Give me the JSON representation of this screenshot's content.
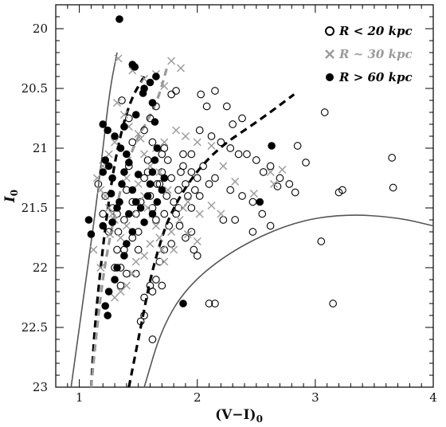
{
  "chart_data": {
    "type": "scatter",
    "xlabel": "(V−I)₀",
    "ylabel": "I₀",
    "xlim": [
      0.8,
      4.0
    ],
    "ylim": [
      23.0,
      19.8
    ],
    "y_inverted": true,
    "x_ticks": [
      1,
      2,
      3,
      4
    ],
    "y_ticks": [
      20,
      20.5,
      21,
      21.5,
      22,
      22.5,
      23
    ],
    "x_minor_step": 0.1,
    "y_minor_step": 0.1,
    "legend_position": "top-right",
    "legend": [
      {
        "symbol": "open-circle",
        "label": "R < 20 kpc",
        "color": "#000000"
      },
      {
        "symbol": "cross",
        "label": "R ~ 30 kpc",
        "color": "#9a9a9a"
      },
      {
        "symbol": "filled-circle",
        "label": "R > 60 kpc",
        "color": "#000000"
      }
    ],
    "series": [
      {
        "name": "R < 20 kpc",
        "marker": "open-circle",
        "color": "#000000",
        "points": [
          [
            1.16,
            21.3
          ],
          [
            1.22,
            21.4
          ],
          [
            1.2,
            21.55
          ],
          [
            1.28,
            21.5
          ],
          [
            1.25,
            21.7
          ],
          [
            1.32,
            21.85
          ],
          [
            1.3,
            22.0
          ],
          [
            1.35,
            22.15
          ],
          [
            1.38,
            21.6
          ],
          [
            1.4,
            21.35
          ],
          [
            1.42,
            21.15
          ],
          [
            1.45,
            21.45
          ],
          [
            1.48,
            21.55
          ],
          [
            1.5,
            21.7
          ],
          [
            1.55,
            21.25
          ],
          [
            1.58,
            21.1
          ],
          [
            1.6,
            21.4
          ],
          [
            1.62,
            21.5
          ],
          [
            1.65,
            21.6
          ],
          [
            1.68,
            21.3
          ],
          [
            1.7,
            21.2
          ],
          [
            1.72,
            21.0
          ],
          [
            1.74,
            21.4
          ],
          [
            1.75,
            21.1
          ],
          [
            1.78,
            21.25
          ],
          [
            1.8,
            21.45
          ],
          [
            1.82,
            21.55
          ],
          [
            1.84,
            21.35
          ],
          [
            1.86,
            21.2
          ],
          [
            1.88,
            21.15
          ],
          [
            1.9,
            21.3
          ],
          [
            1.92,
            21.4
          ],
          [
            1.95,
            21.5
          ],
          [
            1.98,
            21.35
          ],
          [
            2.0,
            21.25
          ],
          [
            1.45,
            20.95
          ],
          [
            1.55,
            20.85
          ],
          [
            1.6,
            20.75
          ],
          [
            1.65,
            20.65
          ],
          [
            1.78,
            20.55
          ],
          [
            1.82,
            20.52
          ],
          [
            2.03,
            20.55
          ],
          [
            2.08,
            20.65
          ],
          [
            2.15,
            20.52
          ],
          [
            2.25,
            20.65
          ],
          [
            2.3,
            20.8
          ],
          [
            2.38,
            20.75
          ],
          [
            2.02,
            20.85
          ],
          [
            2.12,
            20.9
          ],
          [
            2.2,
            20.95
          ],
          [
            2.28,
            21.0
          ],
          [
            2.35,
            21.05
          ],
          [
            2.42,
            21.05
          ],
          [
            2.5,
            21.1
          ],
          [
            2.56,
            21.2
          ],
          [
            2.62,
            21.15
          ],
          [
            2.7,
            21.25
          ],
          [
            2.78,
            21.3
          ],
          [
            2.28,
            21.35
          ],
          [
            2.38,
            21.4
          ],
          [
            2.47,
            21.45
          ],
          [
            2.55,
            21.55
          ],
          [
            2.22,
            21.6
          ],
          [
            2.32,
            21.6
          ],
          [
            2.85,
            20.98
          ],
          [
            2.92,
            21.12
          ],
          [
            2.83,
            21.37
          ],
          [
            2.68,
            21.32
          ],
          [
            3.08,
            20.7
          ],
          [
            3.2,
            21.37
          ],
          [
            3.23,
            21.35
          ],
          [
            3.65,
            21.08
          ],
          [
            3.66,
            21.33
          ],
          [
            3.05,
            21.78
          ],
          [
            2.47,
            21.7
          ],
          [
            2.62,
            21.65
          ],
          [
            1.95,
            21.7
          ],
          [
            1.97,
            21.85
          ],
          [
            2.0,
            21.9
          ],
          [
            1.9,
            21.75
          ],
          [
            1.85,
            21.65
          ],
          [
            1.78,
            21.8
          ],
          [
            1.72,
            21.85
          ],
          [
            1.68,
            21.95
          ],
          [
            1.65,
            22.1
          ],
          [
            1.62,
            22.2
          ],
          [
            1.55,
            22.25
          ],
          [
            1.52,
            22.45
          ],
          [
            1.55,
            22.4
          ],
          [
            1.62,
            22.6
          ],
          [
            1.6,
            22.15
          ],
          [
            1.7,
            22.15
          ],
          [
            1.5,
            21.85
          ],
          [
            1.48,
            22.05
          ],
          [
            1.4,
            22.05
          ],
          [
            1.38,
            21.85
          ],
          [
            1.33,
            21.7
          ],
          [
            1.35,
            22.0
          ],
          [
            1.45,
            21.75
          ],
          [
            1.32,
            21.55
          ],
          [
            2.1,
            22.3
          ],
          [
            2.15,
            22.3
          ],
          [
            3.15,
            22.3
          ],
          [
            1.95,
            21.05
          ],
          [
            2.05,
            21.15
          ],
          [
            2.1,
            21.3
          ],
          [
            2.15,
            21.25
          ],
          [
            1.88,
            21.05
          ],
          [
            1.95,
            21.2
          ],
          [
            2.02,
            21.4
          ],
          [
            1.72,
            21.55
          ],
          [
            1.76,
            21.65
          ],
          [
            1.84,
            21.5
          ],
          [
            1.42,
            20.75
          ],
          [
            1.36,
            20.6
          ],
          [
            1.62,
            20.95
          ],
          [
            1.7,
            21.05
          ],
          [
            1.58,
            21.2
          ],
          [
            1.66,
            21.3
          ],
          [
            1.52,
            21.45
          ]
        ]
      },
      {
        "name": "R ~ 30 kpc",
        "marker": "cross",
        "color": "#9a9a9a",
        "points": [
          [
            1.33,
            20.25
          ],
          [
            1.45,
            20.35
          ],
          [
            1.55,
            20.42
          ],
          [
            1.65,
            20.38
          ],
          [
            1.78,
            20.27
          ],
          [
            1.86,
            20.33
          ],
          [
            1.72,
            20.48
          ],
          [
            1.32,
            20.62
          ],
          [
            1.38,
            20.72
          ],
          [
            1.42,
            20.82
          ],
          [
            1.5,
            20.88
          ],
          [
            1.52,
            20.92
          ],
          [
            1.3,
            20.95
          ],
          [
            1.25,
            21.05
          ],
          [
            1.2,
            21.15
          ],
          [
            1.15,
            21.25
          ],
          [
            1.18,
            21.35
          ],
          [
            1.22,
            21.4
          ],
          [
            1.25,
            21.5
          ],
          [
            1.28,
            21.55
          ],
          [
            1.3,
            21.6
          ],
          [
            1.26,
            21.72
          ],
          [
            1.35,
            21.75
          ],
          [
            1.4,
            21.65
          ],
          [
            1.45,
            21.55
          ],
          [
            1.5,
            21.45
          ],
          [
            1.55,
            21.4
          ],
          [
            1.58,
            21.5
          ],
          [
            1.62,
            21.55
          ],
          [
            1.65,
            21.65
          ],
          [
            1.68,
            21.75
          ],
          [
            1.7,
            21.85
          ],
          [
            1.72,
            21.95
          ],
          [
            1.6,
            21.8
          ],
          [
            1.55,
            21.9
          ],
          [
            1.48,
            21.95
          ],
          [
            1.45,
            22.05
          ],
          [
            1.4,
            22.15
          ],
          [
            1.35,
            22.2
          ],
          [
            1.3,
            22.25
          ],
          [
            1.78,
            21.7
          ],
          [
            1.8,
            21.85
          ],
          [
            1.85,
            21.6
          ],
          [
            1.88,
            21.5
          ],
          [
            1.92,
            21.45
          ],
          [
            1.75,
            21.35
          ],
          [
            1.68,
            21.2
          ],
          [
            1.6,
            21.15
          ],
          [
            1.55,
            21.05
          ],
          [
            1.65,
            21.0
          ],
          [
            1.72,
            20.95
          ],
          [
            1.82,
            20.85
          ],
          [
            1.9,
            20.9
          ],
          [
            2.0,
            20.95
          ],
          [
            2.12,
            20.98
          ],
          [
            2.22,
            21.15
          ],
          [
            2.32,
            21.28
          ],
          [
            2.48,
            21.38
          ],
          [
            2.62,
            21.2
          ],
          [
            2.65,
            21.3
          ],
          [
            2.72,
            21.18
          ],
          [
            2.2,
            21.55
          ],
          [
            2.12,
            21.48
          ],
          [
            2.02,
            21.55
          ],
          [
            1.92,
            21.72
          ],
          [
            2.0,
            21.78
          ],
          [
            1.5,
            21.3
          ],
          [
            1.12,
            21.85
          ],
          [
            1.18,
            22.0
          ],
          [
            1.4,
            21.25
          ]
        ]
      },
      {
        "name": "R > 60 kpc",
        "marker": "filled-circle",
        "color": "#000000",
        "points": [
          [
            1.34,
            19.92
          ],
          [
            1.45,
            20.3
          ],
          [
            1.47,
            20.32
          ],
          [
            1.55,
            20.5
          ],
          [
            1.6,
            20.45
          ],
          [
            1.65,
            20.4
          ],
          [
            1.54,
            20.54
          ],
          [
            1.62,
            20.62
          ],
          [
            1.64,
            20.78
          ],
          [
            1.38,
            20.82
          ],
          [
            1.48,
            20.72
          ],
          [
            1.2,
            20.8
          ],
          [
            1.24,
            20.85
          ],
          [
            1.3,
            20.9
          ],
          [
            1.35,
            21.0
          ],
          [
            1.4,
            21.05
          ],
          [
            1.42,
            21.12
          ],
          [
            1.22,
            21.1
          ],
          [
            1.25,
            21.15
          ],
          [
            1.2,
            21.2
          ],
          [
            1.28,
            21.25
          ],
          [
            1.36,
            21.3
          ],
          [
            1.45,
            21.35
          ],
          [
            1.48,
            21.45
          ],
          [
            1.52,
            21.5
          ],
          [
            1.58,
            21.4
          ],
          [
            1.62,
            21.55
          ],
          [
            1.66,
            21.45
          ],
          [
            1.7,
            21.35
          ],
          [
            1.72,
            21.25
          ],
          [
            1.55,
            21.62
          ],
          [
            1.45,
            21.7
          ],
          [
            1.4,
            21.8
          ],
          [
            1.38,
            21.9
          ],
          [
            1.32,
            22.0
          ],
          [
            1.3,
            22.1
          ],
          [
            1.25,
            22.2
          ],
          [
            1.22,
            22.32
          ],
          [
            1.24,
            22.4
          ],
          [
            1.28,
            21.62
          ],
          [
            1.1,
            21.72
          ],
          [
            1.08,
            21.6
          ],
          [
            1.2,
            21.65
          ],
          [
            1.32,
            21.5
          ],
          [
            1.34,
            21.45
          ],
          [
            1.6,
            21.3
          ],
          [
            1.62,
            21.2
          ],
          [
            1.64,
            21.1
          ],
          [
            1.66,
            21.0
          ],
          [
            1.88,
            22.3
          ],
          [
            2.53,
            21.45
          ],
          [
            2.63,
            20.98
          ],
          [
            1.38,
            21.2
          ],
          [
            1.42,
            21.55
          ],
          [
            1.27,
            21.38
          ],
          [
            1.5,
            21.22
          ]
        ]
      }
    ],
    "curves": [
      {
        "style": "solid",
        "color": "#555555",
        "points": [
          [
            0.93,
            23.0
          ],
          [
            1.0,
            22.5
          ],
          [
            1.07,
            22.0
          ],
          [
            1.14,
            21.5
          ],
          [
            1.2,
            21.0
          ],
          [
            1.26,
            20.5
          ],
          [
            1.32,
            20.2
          ]
        ]
      },
      {
        "style": "dashed",
        "color": "#000000",
        "points": [
          [
            1.1,
            23.0
          ],
          [
            1.13,
            22.5
          ],
          [
            1.18,
            22.0
          ],
          [
            1.24,
            21.5
          ],
          [
            1.32,
            21.0
          ],
          [
            1.43,
            20.6
          ],
          [
            1.55,
            20.4
          ]
        ]
      },
      {
        "style": "dashed",
        "color": "#9a9a9a",
        "points": [
          [
            1.1,
            23.0
          ],
          [
            1.15,
            22.5
          ],
          [
            1.21,
            22.0
          ],
          [
            1.31,
            21.5
          ],
          [
            1.44,
            21.0
          ],
          [
            1.65,
            20.65
          ],
          [
            1.75,
            20.3
          ]
        ]
      },
      {
        "style": "dashed",
        "color": "#000000",
        "points": [
          [
            1.42,
            23.0
          ],
          [
            1.52,
            22.5
          ],
          [
            1.62,
            22.0
          ],
          [
            1.78,
            21.5
          ],
          [
            2.1,
            21.05
          ],
          [
            2.55,
            20.75
          ],
          [
            2.82,
            20.55
          ]
        ]
      },
      {
        "style": "solid",
        "color": "#555555",
        "points": [
          [
            1.55,
            23.0
          ],
          [
            1.7,
            22.5
          ],
          [
            1.92,
            22.15
          ],
          [
            2.3,
            21.85
          ],
          [
            2.8,
            21.62
          ],
          [
            3.25,
            21.55
          ],
          [
            3.7,
            21.58
          ],
          [
            4.0,
            21.65
          ]
        ]
      }
    ]
  }
}
